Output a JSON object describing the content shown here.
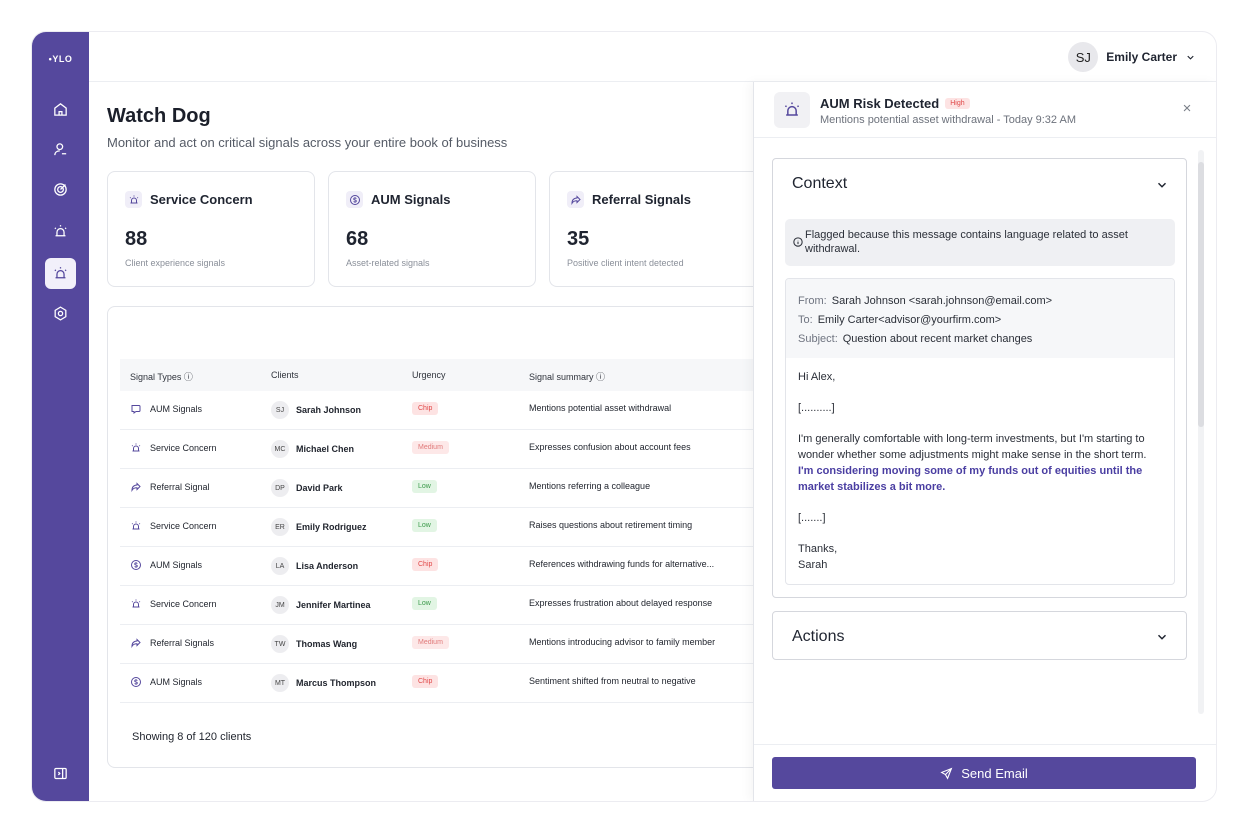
{
  "app": {
    "logo": "•YLO"
  },
  "user": {
    "initials": "SJ",
    "name": "Emily Carter"
  },
  "page": {
    "title": "Watch Dog",
    "subtitle": "Monitor and act on critical signals across your entire book of business"
  },
  "stats": [
    {
      "label": "Service Concern",
      "value": "88",
      "desc": "Client experience signals",
      "icon": "alarm-icon"
    },
    {
      "label": "AUM Signals",
      "value": "68",
      "desc": "Asset-related signals",
      "icon": "dollar-icon"
    },
    {
      "label": "Referral Signals",
      "value": "35",
      "desc": "Positive client intent detected",
      "icon": "share-icon"
    }
  ],
  "table": {
    "headers": {
      "signal_types": "Signal Types ⓘ",
      "clients": "Clients",
      "urgency": "Urgency",
      "summary": "Signal summary ⓘ"
    },
    "rows": [
      {
        "type": "AUM Signals",
        "icon": "chat-icon",
        "initials": "SJ",
        "client": "Sarah Johnson",
        "urgency": "Chip",
        "level": "high",
        "summary": "Mentions potential asset withdrawal"
      },
      {
        "type": "Service Concern",
        "icon": "alarm-icon",
        "initials": "MC",
        "client": "Michael Chen",
        "urgency": "Medium",
        "level": "medium",
        "summary": "Expresses confusion about account fees"
      },
      {
        "type": "Referral Signal",
        "icon": "share-icon",
        "initials": "DP",
        "client": "David Park",
        "urgency": "Low",
        "level": "low",
        "summary": "Mentions referring a colleague"
      },
      {
        "type": "Service Concern",
        "icon": "alarm-icon",
        "initials": "ER",
        "client": "Emily Rodriguez",
        "urgency": "Low",
        "level": "low",
        "summary": "Raises questions about retirement timing"
      },
      {
        "type": "AUM Signals",
        "icon": "dollar-icon",
        "initials": "LA",
        "client": "Lisa Anderson",
        "urgency": "Chip",
        "level": "high",
        "summary": "References withdrawing funds for alternative..."
      },
      {
        "type": "Service Concern",
        "icon": "alarm-icon",
        "initials": "JM",
        "client": "Jennifer Martinea",
        "urgency": "Low",
        "level": "low",
        "summary": "Expresses frustration about delayed response"
      },
      {
        "type": "Referral Signals",
        "icon": "share-icon",
        "initials": "TW",
        "client": "Thomas Wang",
        "urgency": "Medium",
        "level": "medium",
        "summary": "Mentions introducing advisor to family member"
      },
      {
        "type": "AUM Signals",
        "icon": "dollar-icon",
        "initials": "MT",
        "client": "Marcus Thompson",
        "urgency": "Chip",
        "level": "high",
        "summary": "Sentiment shifted from neutral to negative"
      }
    ],
    "footer": "Showing 8 of 120 clients"
  },
  "urgency_colors": {
    "high": {
      "bg": "#fde3e3",
      "fg": "#e04848"
    },
    "medium": {
      "bg": "#fde8e8",
      "fg": "#e07a7a"
    },
    "low": {
      "bg": "#e2f5e4",
      "fg": "#3b9a4a"
    }
  },
  "drawer": {
    "title": "AUM Risk Detected",
    "badge": "High",
    "subtitle": "Mentions potential asset withdrawal - Today 9:32 AM",
    "context": {
      "title": "Context",
      "info": "Flagged because this message contains language related to asset withdrawal.",
      "from_label": "From:",
      "from": "Sarah Johnson <sarah.johnson@email.com>",
      "to_label": "To:",
      "to": "Emily Carter<advisor@yourfirm.com>",
      "subject_label": "Subject:",
      "subject": "Question about recent market changes",
      "greeting": "Hi Alex,",
      "ellipsis1": "[..........]",
      "body": "I'm generally comfortable with long-term investments, but I'm starting to wonder whether some adjustments might make sense in the short term.",
      "highlight": "I'm considering moving some of my funds out of equities until the market stabilizes a bit more.",
      "ellipsis2": "[.......]",
      "signoff": "Thanks,",
      "signature": "Sarah"
    },
    "actions_title": "Actions",
    "send_label": "Send Email"
  },
  "colors": {
    "brand": "#55489d",
    "highlight": "#4a3ea2"
  }
}
